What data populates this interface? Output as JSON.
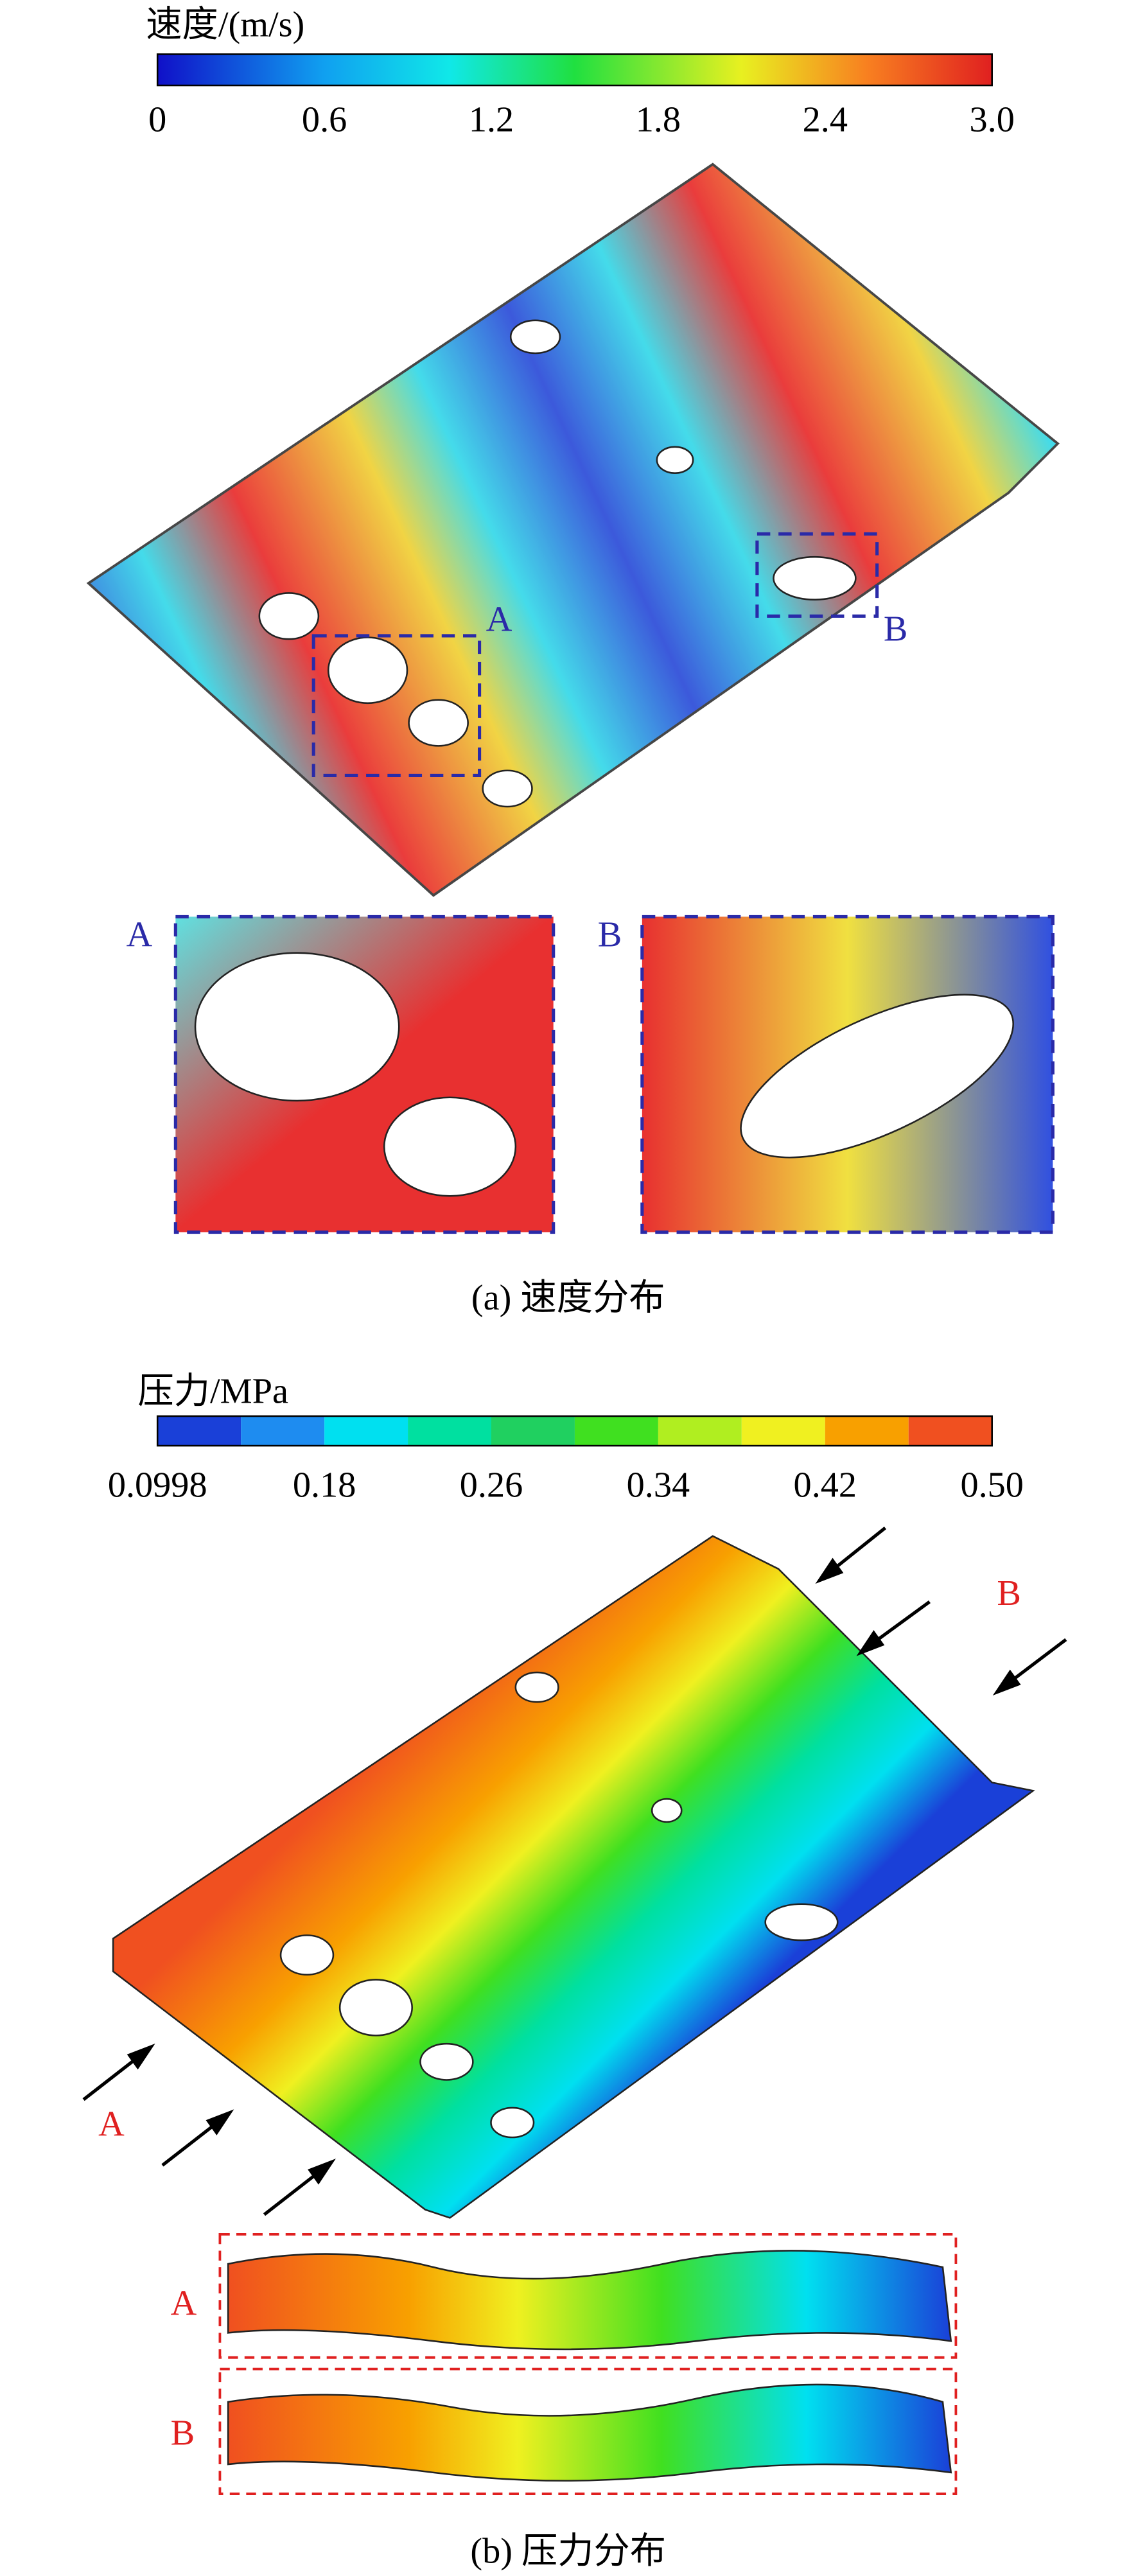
{
  "panel_a": {
    "colorbar": {
      "title": "速度/(m/s)",
      "ticks": [
        "0",
        "0.6",
        "1.2",
        "1.8",
        "2.4",
        "3.0"
      ]
    },
    "markers": [
      "A",
      "B"
    ],
    "insets": [
      "A",
      "B"
    ],
    "caption": "(a) 速度分布"
  },
  "panel_b": {
    "colorbar": {
      "title": "压力/MPa",
      "ticks": [
        "0.0998",
        "0.18",
        "0.26",
        "0.34",
        "0.42",
        "0.50"
      ]
    },
    "markers": [
      "A",
      "B"
    ],
    "insets": [
      "A",
      "B"
    ],
    "caption": "(b) 压力分布"
  }
}
